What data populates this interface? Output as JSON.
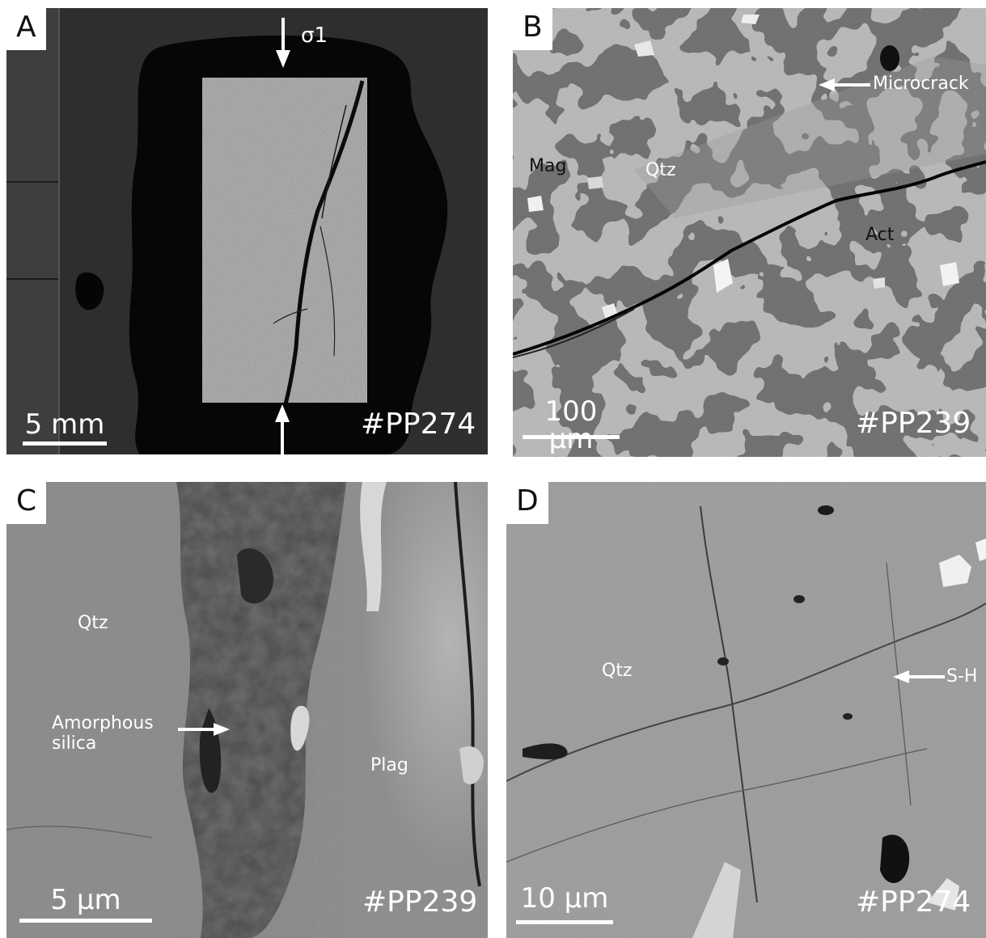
{
  "panels": {
    "a": {
      "letter": "A",
      "sample": "#PP274",
      "scale": "5 mm",
      "stress_label": "σ1"
    },
    "b": {
      "letter": "B",
      "sample": "#PP239",
      "scale": "100 µm",
      "microcrack": "Microcrack",
      "mag": "Mag",
      "qtz": "Qtz",
      "act": "Act"
    },
    "c": {
      "letter": "C",
      "sample": "#PP239",
      "scale": "5 µm",
      "qtz": "Qtz",
      "amorphous_line1": "Amorphous",
      "amorphous_line2": "silica",
      "plag": "Plag"
    },
    "d": {
      "letter": "D",
      "sample": "#PP274",
      "scale": "10 µm",
      "qtz": "Qtz",
      "sh": "S-H"
    }
  }
}
